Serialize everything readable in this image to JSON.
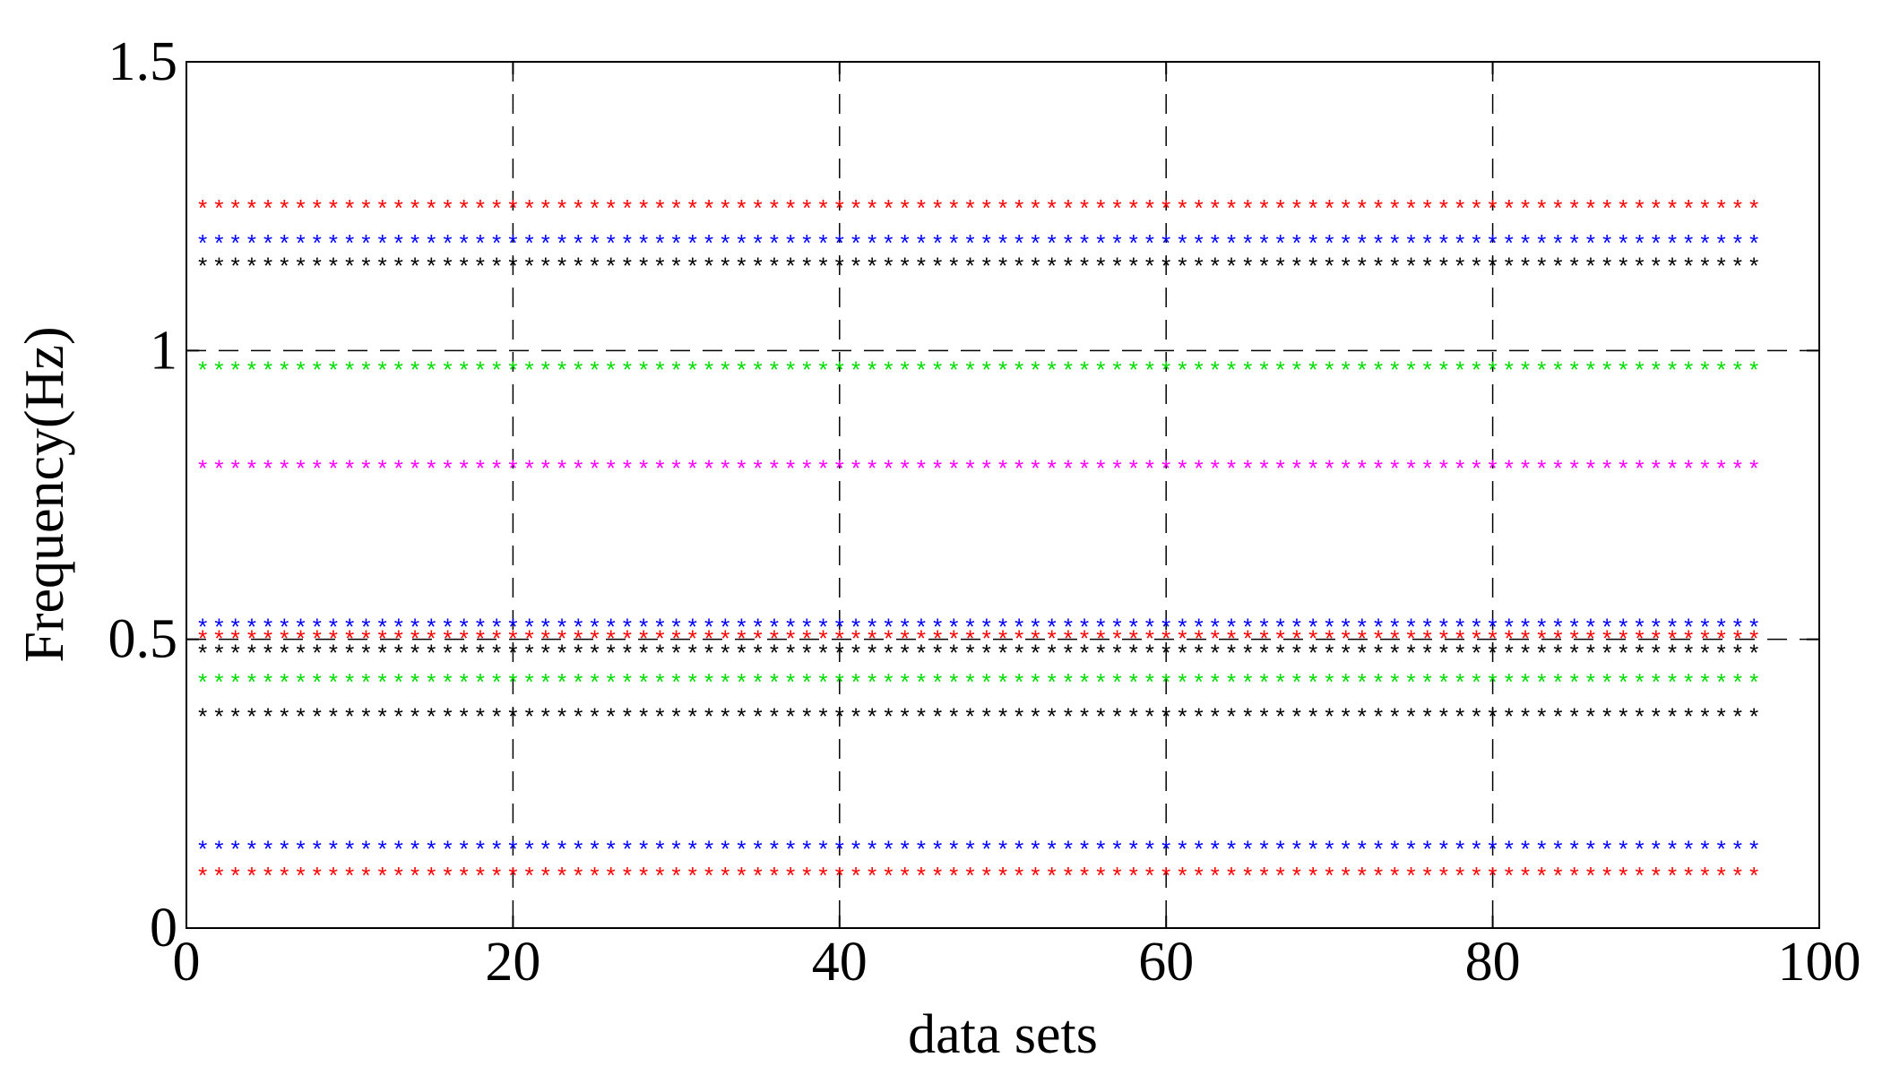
{
  "chart_data": {
    "type": "scatter",
    "title": "",
    "xlabel": "data sets",
    "ylabel": "Frequency(Hz)",
    "xlim": [
      0,
      100
    ],
    "ylim": [
      0,
      1.5
    ],
    "xticks": [
      "0",
      "20",
      "40",
      "60",
      "80",
      "100"
    ],
    "yticks": [
      "0",
      "0.5",
      "1",
      "1.5"
    ],
    "grid": true,
    "marker": "*",
    "x": {
      "start": 1,
      "end": 96,
      "step": 1
    },
    "series": [
      {
        "color": "#ff0000",
        "level": 1.25
      },
      {
        "color": "#0000ff",
        "level": 1.19
      },
      {
        "color": "#000000",
        "level": 1.15
      },
      {
        "color": "#00dd00",
        "level": 0.97
      },
      {
        "color": "#ff00ff",
        "level": 0.8
      },
      {
        "color": "#0000ff",
        "level": 0.525
      },
      {
        "color": "#ff0000",
        "level": 0.505
      },
      {
        "color": "#000000",
        "level": 0.48
      },
      {
        "color": "#00dd00",
        "level": 0.43
      },
      {
        "color": "#000000",
        "level": 0.37
      },
      {
        "color": "#0000ff",
        "level": 0.14
      },
      {
        "color": "#ff0000",
        "level": 0.095
      }
    ]
  }
}
